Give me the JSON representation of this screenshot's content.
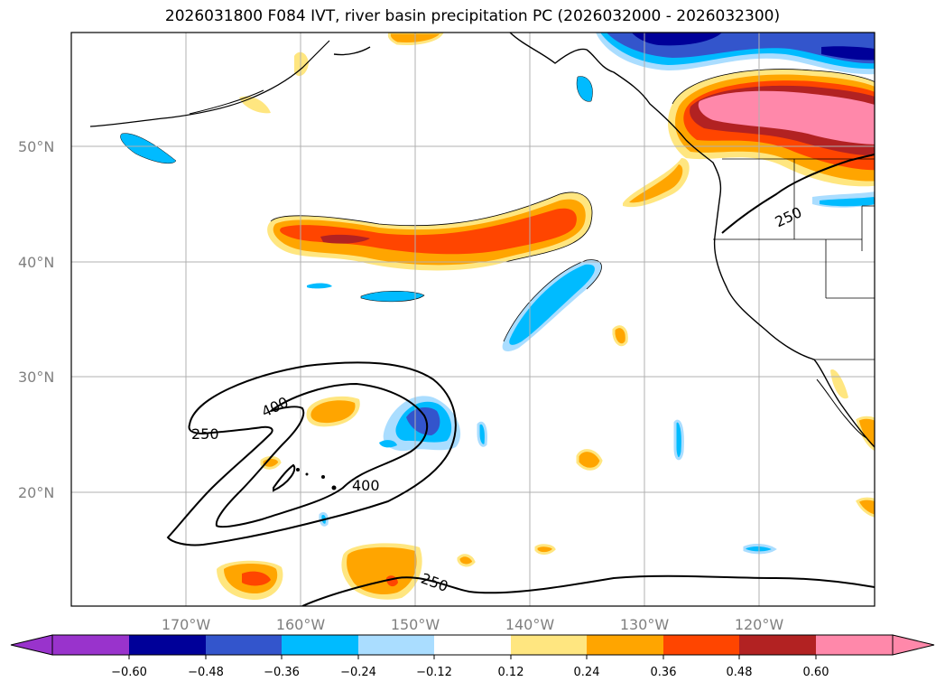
{
  "title": "2026031800 F084 IVT, river basin precipitation PC (2026032000 - 2026032300)",
  "latitude_labels": [
    "50°N",
    "40°N",
    "30°N",
    "20°N"
  ],
  "longitude_labels": [
    "170°W",
    "160°W",
    "150°W",
    "140°W",
    "130°W",
    "120°W"
  ],
  "ivt_contour_labels": [
    "400",
    "250",
    "400",
    "250",
    "250"
  ],
  "colorbar": {
    "tick_labels": [
      "−0.60",
      "−0.48",
      "−0.36",
      "−0.24",
      "−0.12",
      "0.12",
      "0.24",
      "0.36",
      "0.48",
      "0.60"
    ],
    "colors": {
      "extend_low": "#9933cc",
      "lt_-0.60": "#000099",
      "-0.60_-0.48": "#3355cc",
      "-0.48_-0.36": "#00bbff",
      "-0.36_-0.24": "#aaddff",
      "-0.12_0.12": "#ffffff",
      "0.12_0.24": "#ffe680",
      "0.24_0.36": "#ffa500",
      "0.36_0.48": "#ff4500",
      "0.48_0.60": "#b22222",
      "extend_high": "#ff88aa"
    }
  },
  "chart_data": {
    "type": "filled-contour map",
    "title": "2026031800 F084 IVT, river basin precipitation PC (2026032000 - 2026032300)",
    "lon_range": [
      -180,
      -110
    ],
    "lat_range": [
      10,
      60
    ],
    "ivt_contour_levels": [
      250,
      400
    ],
    "colorbar_levels": [
      -0.6,
      -0.48,
      -0.36,
      -0.24,
      -0.12,
      0.12,
      0.24,
      0.36,
      0.48,
      0.6
    ]
  }
}
